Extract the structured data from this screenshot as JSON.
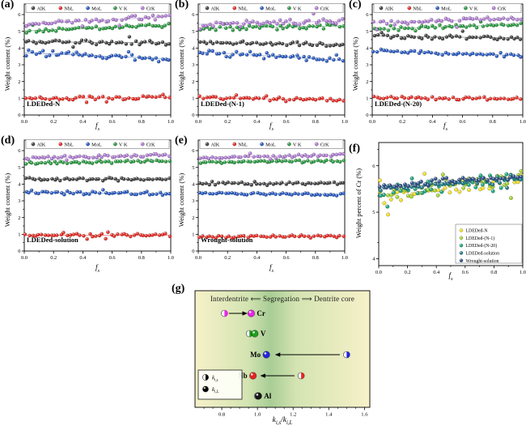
{
  "chart_data": [
    {
      "id": "a",
      "type": "scatter",
      "panel_label": "(a)",
      "sample_label": "LDEDed-N",
      "xlabel": {
        "main": "f",
        "sub": "s"
      },
      "ylabel": "Weight content (%)",
      "xlim": [
        0.0,
        1.0
      ],
      "ylim": [
        0,
        6
      ],
      "xticks": [
        0.0,
        0.2,
        0.4,
        0.6,
        0.8,
        1.0
      ],
      "yticks": [
        0,
        1,
        2,
        3,
        4,
        5,
        6
      ],
      "n_points": 44,
      "legend_position": "top",
      "trend_lines": true,
      "series": [
        {
          "name": "AlK",
          "color": "#474747",
          "trend": [
            4.38,
            4.3
          ],
          "jitter": 0.1,
          "outlier": 0.05
        },
        {
          "name": "NbL",
          "color": "#e8322b",
          "trend": [
            0.98,
            1.05
          ],
          "jitter": 0.09,
          "outlier": 0.08
        },
        {
          "name": "MoL",
          "color": "#2f5fc4",
          "trend": [
            3.72,
            3.35
          ],
          "jitter": 0.13,
          "outlier": 0.05
        },
        {
          "name": "V K",
          "color": "#2e9e45",
          "trend": [
            5.02,
            5.38
          ],
          "jitter": 0.09,
          "outlier": 0.04
        },
        {
          "name": "CrK",
          "color": "#b27fd6",
          "trend": [
            5.42,
            5.88
          ],
          "jitter": 0.11,
          "outlier": 0.05
        }
      ]
    },
    {
      "id": "b",
      "type": "scatter",
      "panel_label": "(b)",
      "sample_label": "LDEDed-(N-1)",
      "xlabel": {
        "main": "f",
        "sub": "s"
      },
      "ylabel": "Weight content (%)",
      "xlim": [
        0.0,
        1.0
      ],
      "ylim": [
        0,
        6
      ],
      "xticks": [
        0.0,
        0.2,
        0.4,
        0.6,
        0.8,
        1.0
      ],
      "yticks": [
        0,
        1,
        2,
        3,
        4,
        5,
        6
      ],
      "n_points": 44,
      "legend_position": "top",
      "trend_lines": true,
      "series": [
        {
          "name": "AlK",
          "color": "#474747",
          "trend": [
            4.32,
            4.22
          ],
          "jitter": 0.08,
          "outlier": 0.04
        },
        {
          "name": "NbL",
          "color": "#e8322b",
          "trend": [
            1.02,
            0.9
          ],
          "jitter": 0.07,
          "outlier": 0.05
        },
        {
          "name": "MoL",
          "color": "#2f5fc4",
          "trend": [
            3.78,
            3.25
          ],
          "jitter": 0.14,
          "outlier": 0.05
        },
        {
          "name": "V K",
          "color": "#2e9e45",
          "trend": [
            5.18,
            5.32
          ],
          "jitter": 0.1,
          "outlier": 0.05
        },
        {
          "name": "CrK",
          "color": "#b27fd6",
          "trend": [
            5.42,
            5.62
          ],
          "jitter": 0.13,
          "outlier": 0.06
        }
      ]
    },
    {
      "id": "c",
      "type": "scatter",
      "panel_label": "(c)",
      "sample_label": "LDEDed-(N-20)",
      "xlabel": {
        "main": "f",
        "sub": "s"
      },
      "ylabel": "Weight content (%)",
      "xlim": [
        0.0,
        1.0
      ],
      "ylim": [
        0,
        6
      ],
      "xticks": [
        0.0,
        0.2,
        0.4,
        0.6,
        0.8,
        1.0
      ],
      "yticks": [
        0,
        1,
        2,
        3,
        4,
        5,
        6
      ],
      "n_points": 44,
      "legend_position": "top",
      "trend_lines": true,
      "series": [
        {
          "name": "AlK",
          "color": "#474747",
          "trend": [
            4.72,
            4.6
          ],
          "jitter": 0.09,
          "outlier": 0.05
        },
        {
          "name": "NbL",
          "color": "#e8322b",
          "trend": [
            1.05,
            0.95
          ],
          "jitter": 0.07,
          "outlier": 0.05
        },
        {
          "name": "MoL",
          "color": "#2f5fc4",
          "trend": [
            3.8,
            3.55
          ],
          "jitter": 0.1,
          "outlier": 0.05
        },
        {
          "name": "V K",
          "color": "#2e9e45",
          "trend": [
            5.1,
            5.42
          ],
          "jitter": 0.09,
          "outlier": 0.04
        },
        {
          "name": "CrK",
          "color": "#b27fd6",
          "trend": [
            5.5,
            5.78
          ],
          "jitter": 0.1,
          "outlier": 0.04
        }
      ]
    },
    {
      "id": "d",
      "type": "scatter",
      "panel_label": "(d)",
      "sample_label": "LDEDed-solution",
      "xlabel": {
        "main": "f",
        "sub": "s"
      },
      "ylabel": "Weight content (%)",
      "xlim": [
        0.0,
        1.0
      ],
      "ylim": [
        0,
        6
      ],
      "xticks": [
        0.0,
        0.2,
        0.4,
        0.6,
        0.8,
        1.0
      ],
      "yticks": [
        0,
        1,
        2,
        3,
        4,
        5,
        6
      ],
      "n_points": 46,
      "legend_position": "top",
      "trend_lines": true,
      "series": [
        {
          "name": "AlK",
          "color": "#474747",
          "trend": [
            4.3,
            4.28
          ],
          "jitter": 0.07,
          "outlier": 0.04
        },
        {
          "name": "NbL",
          "color": "#e8322b",
          "trend": [
            0.95,
            0.95
          ],
          "jitter": 0.07,
          "outlier": 0.04
        },
        {
          "name": "MoL",
          "color": "#2f5fc4",
          "trend": [
            3.52,
            3.42
          ],
          "jitter": 0.08,
          "outlier": 0.04
        },
        {
          "name": "V K",
          "color": "#2e9e45",
          "trend": [
            5.25,
            5.38
          ],
          "jitter": 0.06,
          "outlier": 0.03
        },
        {
          "name": "CrK",
          "color": "#b27fd6",
          "trend": [
            5.55,
            5.75
          ],
          "jitter": 0.07,
          "outlier": 0.03
        }
      ]
    },
    {
      "id": "e",
      "type": "scatter",
      "panel_label": "(e)",
      "sample_label": "Wrought-solution",
      "xlabel": {
        "main": "f",
        "sub": "s"
      },
      "ylabel": "Weight content (%)",
      "xlim": [
        0.0,
        1.0
      ],
      "ylim": [
        0,
        6
      ],
      "xticks": [
        0.0,
        0.2,
        0.4,
        0.6,
        0.8,
        1.0
      ],
      "yticks": [
        0,
        1,
        2,
        3,
        4,
        5,
        6
      ],
      "n_points": 46,
      "legend_position": "top",
      "trend_lines": true,
      "series": [
        {
          "name": "AlK",
          "color": "#474747",
          "trend": [
            4.05,
            4.02
          ],
          "jitter": 0.07,
          "outlier": 0.03
        },
        {
          "name": "NbL",
          "color": "#e8322b",
          "trend": [
            0.85,
            0.88
          ],
          "jitter": 0.06,
          "outlier": 0.04
        },
        {
          "name": "MoL",
          "color": "#2f5fc4",
          "trend": [
            3.45,
            3.38
          ],
          "jitter": 0.05,
          "outlier": 0.03
        },
        {
          "name": "V K",
          "color": "#2e9e45",
          "trend": [
            5.28,
            5.4
          ],
          "jitter": 0.06,
          "outlier": 0.03
        },
        {
          "name": "CrK",
          "color": "#b27fd6",
          "trend": [
            5.58,
            5.75
          ],
          "jitter": 0.06,
          "outlier": 0.03
        }
      ]
    },
    {
      "id": "f",
      "type": "scatter",
      "panel_label": "(f)",
      "sample_label": "",
      "xlabel": {
        "main": "f",
        "sub": "s"
      },
      "ylabel": "Weight percent of Cr (%)",
      "xlim": [
        0.0,
        1.0
      ],
      "ylim": [
        3.85,
        6.5
      ],
      "xticks": [
        0.0,
        0.2,
        0.4,
        0.6,
        0.8,
        1.0
      ],
      "yticks": [
        4,
        5,
        6
      ],
      "n_points": 42,
      "legend_position": "lower-right",
      "trend_lines": false,
      "series": [
        {
          "name": "LDEDed-N",
          "color": "#f2df2f",
          "trend": [
            5.32,
            5.72
          ],
          "jitter": 0.1,
          "outlier": 0.1
        },
        {
          "name": "LDEDed-(N-1)",
          "color": "#a6d435",
          "trend": [
            5.36,
            5.78
          ],
          "jitter": 0.11,
          "outlier": 0.1
        },
        {
          "name": "LDEDed-(N-20)",
          "color": "#23a884",
          "trend": [
            5.4,
            5.76
          ],
          "jitter": 0.1,
          "outlier": 0.08
        },
        {
          "name": "LDEDed-solution",
          "color": "#2a7f8e",
          "trend": [
            5.5,
            5.74
          ],
          "jitter": 0.06,
          "outlier": 0.02
        },
        {
          "name": "Wrought-solution",
          "color": "#35568c",
          "trend": [
            5.55,
            5.78
          ],
          "jitter": 0.05,
          "outlier": 0.0
        }
      ]
    },
    {
      "id": "g",
      "type": "diagram",
      "panel_label": "(g)",
      "header": "Interdentrite ⟸ Segregation ⟹ Dentrite core",
      "xlabel": {
        "k1": "k",
        "sub1": "i,s",
        "sep": "/",
        "k2": "k",
        "sub2": "i,L"
      },
      "xlim": [
        0.65,
        1.63
      ],
      "xticks": [
        0.8,
        1.0,
        1.2,
        1.4,
        1.6
      ],
      "background": {
        "edge": "#f7f1c9",
        "band": "#a8cd95",
        "mid": "#d4e4b2"
      },
      "legend": [
        {
          "marker": "half-filled-circle",
          "k": "k",
          "sub": "i,s"
        },
        {
          "marker": "solid-circle",
          "k": "k",
          "sub": "i,L"
        }
      ],
      "elements": [
        {
          "name": "Cr",
          "color": "#ee22ee",
          "k_s": 0.815,
          "k_L": 0.965,
          "arrow_from": 0.84,
          "arrow_to": 0.945,
          "label_side": "right"
        },
        {
          "name": "V",
          "color": "#1fa01f",
          "k_s": 0.955,
          "k_L": 0.985,
          "label_side": "right"
        },
        {
          "name": "Mo",
          "color": "#2424e0",
          "k_s": 1.5,
          "k_L": 1.05,
          "arrow_from": 1.462,
          "arrow_to": 1.098,
          "label_side": "left"
        },
        {
          "name": "Nb",
          "color": "#e62424",
          "k_s": 1.245,
          "k_L": 0.975,
          "arrow_from": 1.208,
          "arrow_to": 1.015,
          "label_side": "left"
        },
        {
          "name": "Al",
          "color": "#141414",
          "k_s": 1.0,
          "k_L": 1.005,
          "label_side": "right"
        }
      ]
    }
  ]
}
